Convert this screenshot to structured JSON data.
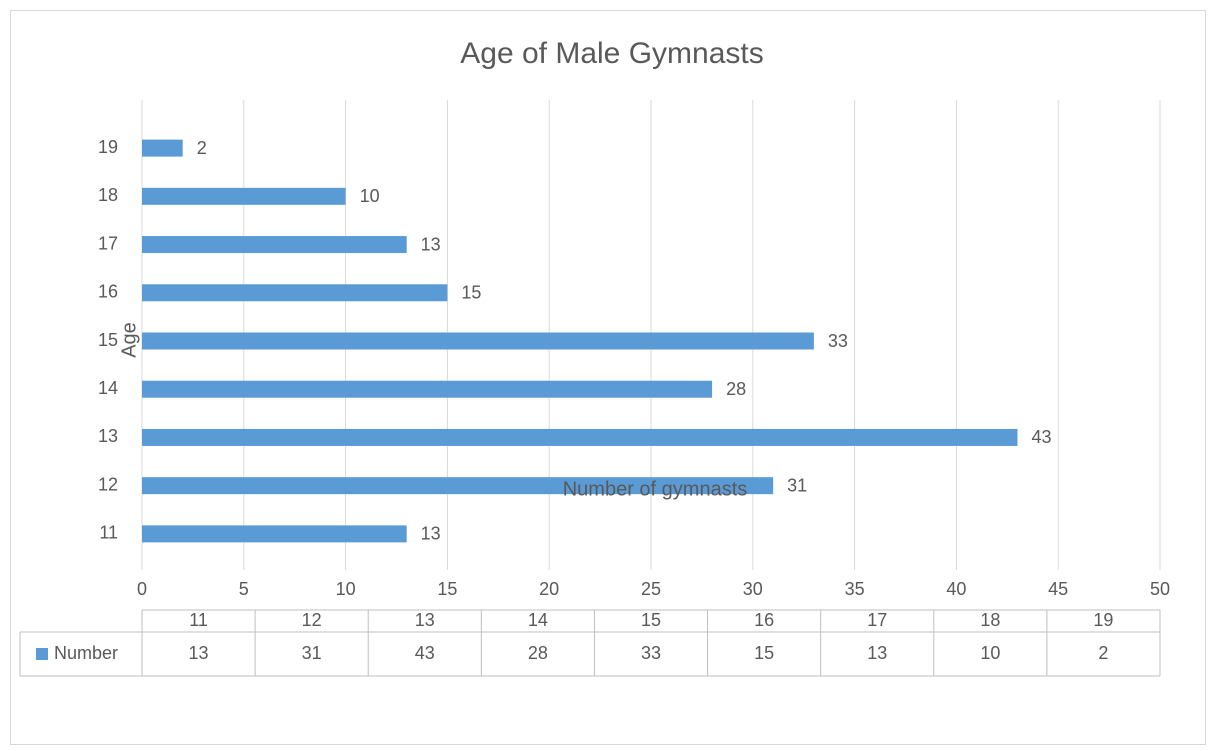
{
  "chart_data": {
    "type": "bar",
    "orientation": "horizontal",
    "title": "Age of Male Gymnasts",
    "x_label": "Number of gymnasts",
    "y_label": "Age",
    "categories": [
      "11",
      "12",
      "13",
      "14",
      "15",
      "16",
      "17",
      "18",
      "19"
    ],
    "series": [
      {
        "name": "Number",
        "color": "#5b9bd5",
        "values": [
          13,
          31,
          43,
          28,
          33,
          15,
          13,
          10,
          2
        ]
      }
    ],
    "xlim": [
      0,
      50
    ],
    "xticks": [
      0,
      5,
      10,
      15,
      20,
      25,
      30,
      35,
      40,
      45,
      50
    ],
    "grid": true,
    "data_table": true
  }
}
